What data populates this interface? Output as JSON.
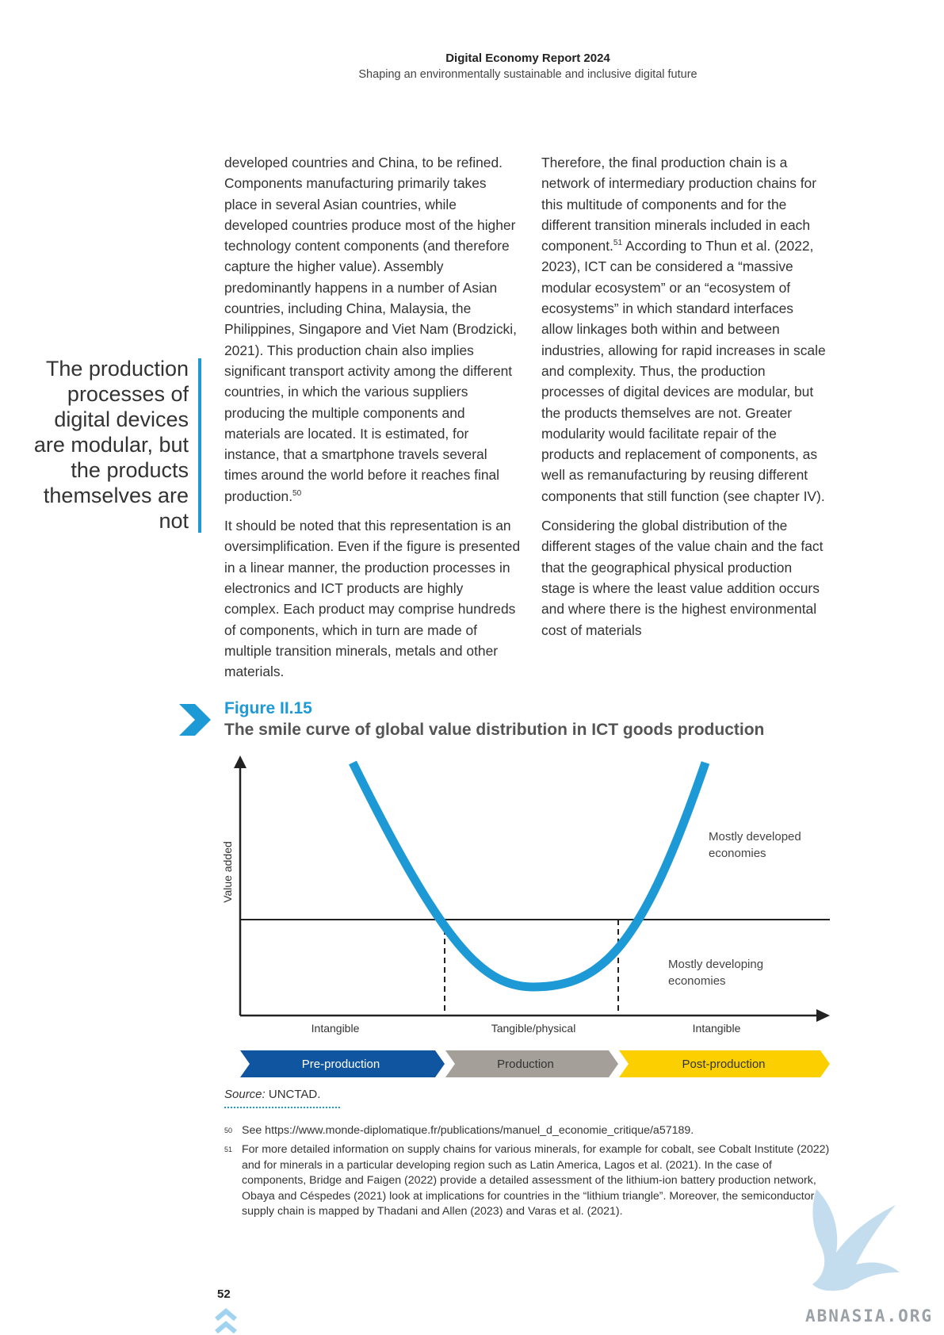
{
  "header": {
    "title": "Digital Economy Report 2024",
    "subtitle": "Shaping an environmentally sustainable and inclusive digital future"
  },
  "col1": {
    "p1": "developed countries and China, to be refined. Components manufacturing primarily takes place in several Asian countries, while developed countries produce most of the higher technology content components (and therefore capture the higher value). Assembly predominantly happens in a number of Asian countries, including China, Malaysia, the Philippines, Singapore and Viet Nam (Brodzicki, 2021). This production chain also implies significant transport activity among the different countries, in which the various suppliers producing the multiple components and materials are located. It is estimated, for instance, that a smartphone travels several times around the world before it reaches final production.",
    "p1_note": "50",
    "p2": "It should be noted that this representation is an oversimplification. Even if the figure is presented in a linear manner, the production processes in electronics and ICT products are highly complex. Each product may comprise hundreds of components, which in turn are made of multiple transition minerals, metals and other materials."
  },
  "col2": {
    "p1a": "Therefore, the final production chain is a network of intermediary production chains for this multitude of components and for the different transition minerals included in each component.",
    "p1_note": "51",
    "p1b": " According to Thun et al. (2022, 2023), ICT can be considered a “massive modular ecosystem” or an “ecosystem of ecosystems” in which standard interfaces allow linkages both within and between industries, allowing for rapid increases in scale and complexity. Thus, the production processes of digital devices are modular, but the products themselves are not. Greater modularity would facilitate repair of the products and replacement of components, as well as remanufacturing by reusing different components that still function (see chapter IV).",
    "p2": "Considering the global distribution of the different stages of the value chain and the fact that the geographical physical production stage is where the least value addition occurs and where there is the highest environmental cost of materials"
  },
  "pull_quote": "The production processes of digital devices are modular, but the products themselves are not",
  "figure": {
    "label": "Figure II.15",
    "title": "The smile curve of global value distribution in ICT goods production"
  },
  "chart_data": {
    "type": "diagram",
    "ylabel": "Value added",
    "zones": [
      "Intangible",
      "Tangible/physical",
      "Intangible"
    ],
    "stages": [
      {
        "label": "Pre-production",
        "color": "#0f55a0"
      },
      {
        "label": "Production",
        "color": "#a49f99"
      },
      {
        "label": "Post-production",
        "color": "#fcd000"
      }
    ],
    "annotations": {
      "upper": [
        "Mostly developed",
        "economies"
      ],
      "lower": [
        "Mostly developing",
        "economies"
      ]
    },
    "curve_color": "#1d9ad6"
  },
  "source": {
    "label": "Source:",
    "text": " UNCTAD."
  },
  "footnotes": [
    {
      "num": "50",
      "text": "See https://www.monde-diplomatique.fr/publications/manuel_d_economie_critique/a57189."
    },
    {
      "num": "51",
      "text": "For more detailed information on supply chains for various minerals, for example for cobalt, see Cobalt Institute (2022) and for minerals in a particular developing region such as Latin America, Lagos et al. (2021). In the case of components, Bridge and Faigen (2022) provide a detailed assessment of the lithium-ion battery production network, Obaya and Céspedes (2021) look at implications for countries in the “lithium triangle”. Moreover, the semiconductor supply chain is mapped by Thadani and Allen (2023) and Varas et al. (2021)."
    }
  ],
  "page_number": "52",
  "watermark": "ABNASIA.ORG"
}
